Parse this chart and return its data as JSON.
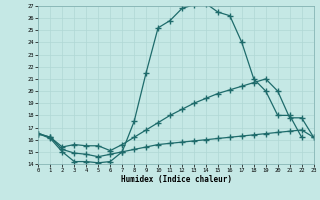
{
  "xlabel": "Humidex (Indice chaleur)",
  "bg_color": "#c5e8e5",
  "line_color": "#1e6b6b",
  "grid_color": "#b0d8d5",
  "xmin": 0,
  "xmax": 23,
  "ymin": 14,
  "ymax": 27,
  "x_ticks": [
    0,
    1,
    2,
    3,
    4,
    5,
    6,
    7,
    8,
    9,
    10,
    11,
    12,
    13,
    14,
    15,
    16,
    17,
    18,
    19,
    20,
    21,
    22,
    23
  ],
  "y_ticks": [
    14,
    15,
    16,
    17,
    18,
    19,
    20,
    21,
    22,
    23,
    24,
    25,
    26,
    27
  ],
  "curve1_x": [
    0,
    1,
    2,
    3,
    4,
    5,
    6,
    7,
    8,
    9,
    10,
    11,
    12,
    13,
    14,
    15,
    16,
    17,
    18,
    19,
    20,
    21,
    22
  ],
  "curve1_y": [
    16.5,
    16.1,
    15.0,
    14.2,
    14.2,
    14.1,
    14.2,
    15.0,
    17.5,
    21.5,
    25.2,
    25.8,
    26.8,
    27.1,
    27.2,
    26.5,
    26.2,
    24.0,
    21.0,
    20.0,
    18.0,
    18.0,
    16.2
  ],
  "curve2_x": [
    0,
    1,
    2,
    3,
    4,
    5,
    6,
    7,
    8,
    9,
    10,
    11,
    12,
    13,
    14,
    15,
    16,
    17,
    18,
    19,
    20,
    21,
    22,
    23
  ],
  "curve2_y": [
    16.5,
    16.2,
    15.4,
    15.6,
    15.5,
    15.5,
    15.1,
    15.6,
    16.2,
    16.8,
    17.4,
    18.0,
    18.5,
    19.0,
    19.4,
    19.8,
    20.1,
    20.4,
    20.7,
    21.0,
    20.0,
    17.8,
    17.8,
    16.2
  ],
  "curve3_x": [
    0,
    1,
    2,
    3,
    4,
    5,
    6,
    7,
    8,
    9,
    10,
    11,
    12,
    13,
    14,
    15,
    16,
    17,
    18,
    19,
    20,
    21,
    22,
    23
  ],
  "curve3_y": [
    16.5,
    16.2,
    15.2,
    14.9,
    14.8,
    14.6,
    14.8,
    15.0,
    15.2,
    15.4,
    15.6,
    15.7,
    15.8,
    15.9,
    16.0,
    16.1,
    16.2,
    16.3,
    16.4,
    16.5,
    16.6,
    16.7,
    16.8,
    16.2
  ]
}
